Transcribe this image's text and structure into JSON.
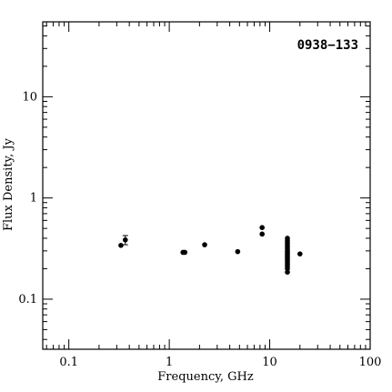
{
  "chart_data": {
    "type": "scatter",
    "title": "0938−133",
    "xlabel": "Frequency, GHz",
    "ylabel": "Flux Density, Jy",
    "xscale": "log",
    "yscale": "log",
    "xlim": [
      0.055,
      100
    ],
    "ylim": [
      0.032,
      55
    ],
    "x_ticks": [
      {
        "value": 0.1,
        "label": "0.1"
      },
      {
        "value": 1,
        "label": "1"
      },
      {
        "value": 10,
        "label": "10"
      },
      {
        "value": 100,
        "label": "100"
      }
    ],
    "y_ticks": [
      {
        "value": 0.1,
        "label": "0.1"
      },
      {
        "value": 1,
        "label": "1"
      },
      {
        "value": 10,
        "label": "10"
      }
    ],
    "grid": false,
    "legend": "none",
    "points": [
      {
        "x": 0.33,
        "y": 0.34
      },
      {
        "x": 0.365,
        "y": 0.385,
        "yerr": 0.04
      },
      {
        "x": 1.37,
        "y": 0.29
      },
      {
        "x": 1.43,
        "y": 0.29
      },
      {
        "x": 2.25,
        "y": 0.345
      },
      {
        "x": 4.8,
        "y": 0.295
      },
      {
        "x": 8.4,
        "y": 0.51
      },
      {
        "x": 8.4,
        "y": 0.44
      },
      {
        "x": 15,
        "y": 0.4
      },
      {
        "x": 15,
        "y": 0.38
      },
      {
        "x": 15,
        "y": 0.36
      },
      {
        "x": 15,
        "y": 0.345
      },
      {
        "x": 15,
        "y": 0.33
      },
      {
        "x": 15,
        "y": 0.315
      },
      {
        "x": 15,
        "y": 0.3
      },
      {
        "x": 15,
        "y": 0.29
      },
      {
        "x": 15,
        "y": 0.28
      },
      {
        "x": 15,
        "y": 0.27
      },
      {
        "x": 15,
        "y": 0.26
      },
      {
        "x": 15,
        "y": 0.25
      },
      {
        "x": 15,
        "y": 0.24
      },
      {
        "x": 15,
        "y": 0.23
      },
      {
        "x": 15,
        "y": 0.22
      },
      {
        "x": 15,
        "y": 0.21
      },
      {
        "x": 15,
        "y": 0.2
      },
      {
        "x": 15,
        "y": 0.185
      },
      {
        "x": 20,
        "y": 0.28
      }
    ],
    "marker_color": "#000000"
  }
}
